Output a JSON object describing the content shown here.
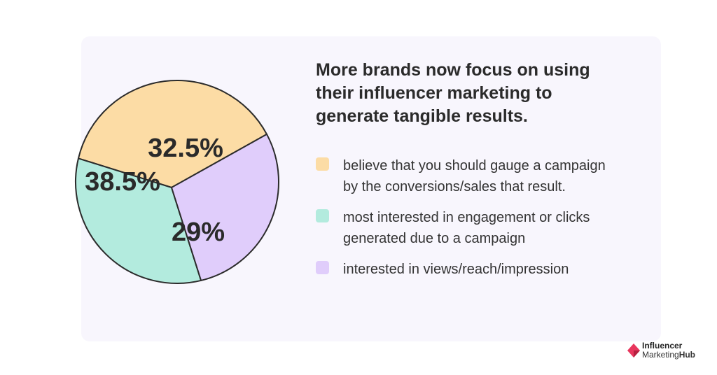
{
  "title": "More brands now focus on using their influencer marketing to generate tangible results.",
  "chart_data": {
    "type": "pie",
    "slices": [
      {
        "label": "believe that you should gauge a campaign by the conversions/sales that result.",
        "value": 38.5,
        "display": "38.5%",
        "color": "#fcdca5"
      },
      {
        "label": "most interested in engagement or clicks generated due to a campaign",
        "value": 32.5,
        "display": "32.5%",
        "color": "#b3ebde"
      },
      {
        "label": "interested in views/reach/impression",
        "value": 29,
        "display": "29%",
        "color": "#e0cdfb"
      }
    ],
    "legend_position": "right"
  },
  "brand": {
    "line1": "Influencer",
    "line2a": "Marketing",
    "line2b": "Hub",
    "colors": [
      "#e8365d",
      "#b5203f"
    ]
  }
}
